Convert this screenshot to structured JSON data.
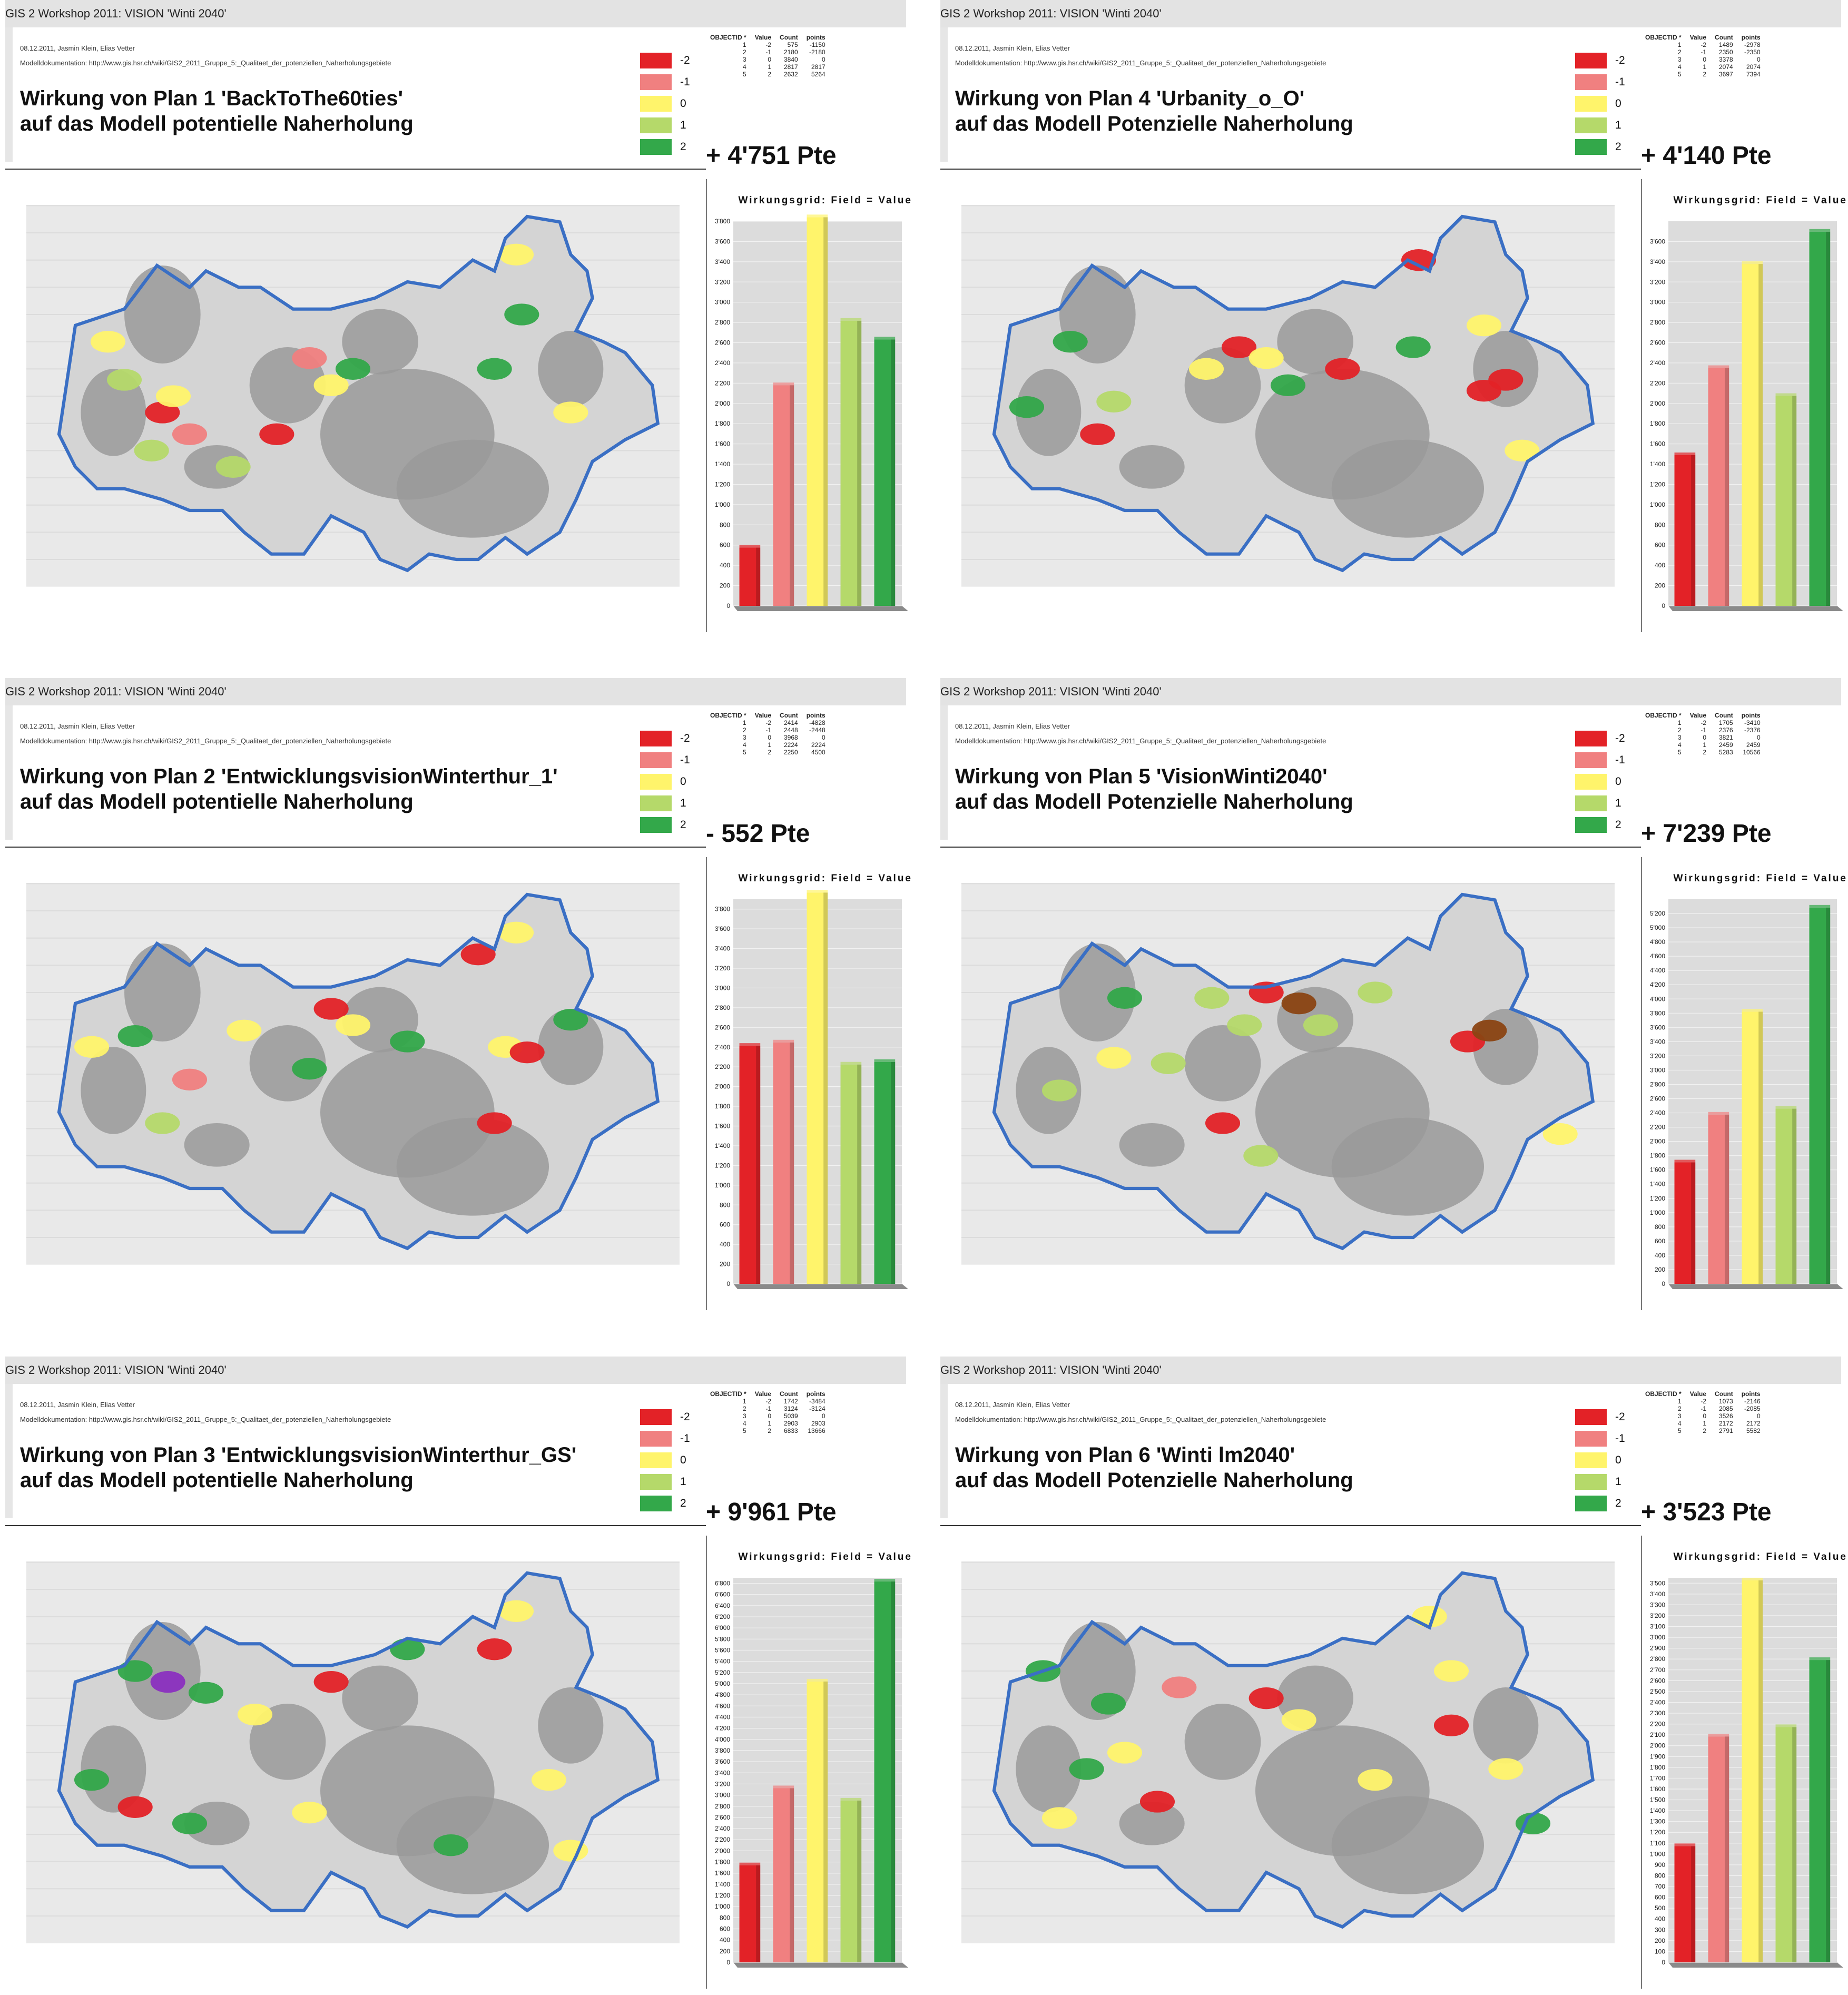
{
  "panels": [
    {
      "id": "p1",
      "header": "GIS 2 Workshop 2011: VISION 'Winti 2040'",
      "date_authors": "08.12.2011, Jasmin Klein, Elias Vetter",
      "doc": "Modelldokumentation: http://www.gis.hsr.ch/wiki/GIS2_2011_Gruppe_5:_Qualitaet_der_potenziellen_Naherholungsgebiete",
      "title_line1": "Wirkung von Plan 1 'BackToThe60ties'",
      "title_line2": "auf das Modell potentielle Naherholung",
      "points": "+ 4'751 Pte",
      "table": {
        "headers": [
          "OBJECTID *",
          "Value",
          "Count",
          "points"
        ],
        "rows": [
          [
            "1",
            "-2",
            "575",
            "-1150"
          ],
          [
            "2",
            "-1",
            "2180",
            "-2180"
          ],
          [
            "3",
            "0",
            "3840",
            "0"
          ],
          [
            "4",
            "1",
            "2817",
            "2817"
          ],
          [
            "5",
            "2",
            "2632",
            "5264"
          ]
        ]
      },
      "chart_data": {
        "type": "bar",
        "title": "Wirkungsgrid: Field = Value",
        "categories": [
          "-2",
          "-1",
          "0",
          "1",
          "2"
        ],
        "values": [
          575,
          2180,
          3840,
          2817,
          2632
        ],
        "ylim": [
          0,
          3800
        ],
        "yticks": [
          "0",
          "200",
          "400",
          "600",
          "800",
          "1'000",
          "1'200",
          "1'400",
          "1'600",
          "1'800",
          "2'000",
          "2'200",
          "2'400",
          "2'600",
          "2'800",
          "3'000",
          "3'200",
          "3'400",
          "3'600",
          "3'800"
        ]
      }
    },
    {
      "id": "p4",
      "header": "GIS 2 Workshop 2011: VISION 'Winti 2040'",
      "date_authors": "08.12.2011, Jasmin Klein, Elias Vetter",
      "doc": "Modelldokumentation: http://www.gis.hsr.ch/wiki/GIS2_2011_Gruppe_5:_Qualitaet_der_potenziellen_Naherholungsgebiete",
      "title_line1": "Wirkung von Plan 4 'Urbanity_o_O'",
      "title_line2": "auf das Modell Potenzielle Naherholung",
      "points": "+ 4'140 Pte",
      "table": {
        "headers": [
          "OBJECTID *",
          "Value",
          "Count",
          "points"
        ],
        "rows": [
          [
            "1",
            "-2",
            "1489",
            "-2978"
          ],
          [
            "2",
            "-1",
            "2350",
            "-2350"
          ],
          [
            "3",
            "0",
            "3378",
            "0"
          ],
          [
            "4",
            "1",
            "2074",
            "2074"
          ],
          [
            "5",
            "2",
            "3697",
            "7394"
          ]
        ]
      },
      "chart_data": {
        "type": "bar",
        "title": "Wirkungsgrid: Field = Value",
        "categories": [
          "-2",
          "-1",
          "0",
          "1",
          "2"
        ],
        "values": [
          1489,
          2350,
          3378,
          2074,
          3697
        ],
        "ylim": [
          0,
          3800
        ],
        "yticks": [
          "0",
          "200",
          "400",
          "600",
          "800",
          "1'000",
          "1'200",
          "1'400",
          "1'600",
          "1'800",
          "2'000",
          "2'200",
          "2'400",
          "2'600",
          "2'800",
          "3'000",
          "3'200",
          "3'400",
          "3'600"
        ]
      }
    },
    {
      "id": "p2",
      "header": "GIS 2 Workshop 2011: VISION 'Winti 2040'",
      "date_authors": "08.12.2011, Jasmin Klein, Elias Vetter",
      "doc": "Modelldokumentation: http://www.gis.hsr.ch/wiki/GIS2_2011_Gruppe_5:_Qualitaet_der_potenziellen_Naherholungsgebiete",
      "title_line1": "Wirkung von Plan 2 'EntwicklungsvisionWinterthur_1'",
      "title_line2": "auf das Modell potentielle Naherholung",
      "points": "- 552 Pte",
      "table": {
        "headers": [
          "OBJECTID *",
          "Value",
          "Count",
          "points"
        ],
        "rows": [
          [
            "1",
            "-2",
            "2414",
            "-4828"
          ],
          [
            "2",
            "-1",
            "2448",
            "-2448"
          ],
          [
            "3",
            "0",
            "3968",
            "0"
          ],
          [
            "4",
            "1",
            "2224",
            "2224"
          ],
          [
            "5",
            "2",
            "2250",
            "4500"
          ]
        ]
      },
      "chart_data": {
        "type": "bar",
        "title": "Wirkungsgrid: Field = Value",
        "categories": [
          "-2",
          "-1",
          "0",
          "1",
          "2"
        ],
        "values": [
          2414,
          2448,
          3968,
          2224,
          2250
        ],
        "ylim": [
          0,
          3900
        ],
        "yticks": [
          "0",
          "200",
          "400",
          "600",
          "800",
          "1'000",
          "1'200",
          "1'400",
          "1'600",
          "1'800",
          "2'000",
          "2'200",
          "2'400",
          "2'600",
          "2'800",
          "3'000",
          "3'200",
          "3'400",
          "3'600",
          "3'800"
        ]
      }
    },
    {
      "id": "p5",
      "header": "GIS 2 Workshop 2011: VISION 'Winti 2040'",
      "date_authors": "08.12.2011, Jasmin Klein, Elias Vetter",
      "doc": "Modelldokumentation: http://www.gis.hsr.ch/wiki/GIS2_2011_Gruppe_5:_Qualitaet_der_potenziellen_Naherholungsgebiete",
      "title_line1": "Wirkung von Plan 5 'VisionWinti2040'",
      "title_line2": "auf das Modell Potenzielle Naherholung",
      "points": "+ 7'239 Pte",
      "table": {
        "headers": [
          "OBJECTID *",
          "Value",
          "Count",
          "points"
        ],
        "rows": [
          [
            "1",
            "-2",
            "1705",
            "-3410"
          ],
          [
            "2",
            "-1",
            "2376",
            "-2376"
          ],
          [
            "3",
            "0",
            "3821",
            "0"
          ],
          [
            "4",
            "1",
            "2459",
            "2459"
          ],
          [
            "5",
            "2",
            "5283",
            "10566"
          ]
        ]
      },
      "chart_data": {
        "type": "bar",
        "title": "Wirkungsgrid: Field = Value",
        "categories": [
          "-2",
          "-1",
          "0",
          "1",
          "2"
        ],
        "values": [
          1705,
          2376,
          3821,
          2459,
          5283
        ],
        "ylim": [
          0,
          5400
        ],
        "yticks": [
          "0",
          "200",
          "400",
          "600",
          "800",
          "1'000",
          "1'200",
          "1'400",
          "1'600",
          "1'800",
          "2'000",
          "2'200",
          "2'400",
          "2'600",
          "2'800",
          "3'000",
          "3'200",
          "3'400",
          "3'600",
          "3'800",
          "4'000",
          "4'200",
          "4'400",
          "4'600",
          "4'800",
          "5'000",
          "5'200"
        ]
      }
    },
    {
      "id": "p3",
      "header": "GIS 2 Workshop 2011: VISION 'Winti 2040'",
      "date_authors": "08.12.2011, Jasmin Klein, Elias Vetter",
      "doc": "Modelldokumentation: http://www.gis.hsr.ch/wiki/GIS2_2011_Gruppe_5:_Qualitaet_der_potenziellen_Naherholungsgebiete",
      "title_line1": "Wirkung von Plan 3 'EntwicklungsvisionWinterthur_GS'",
      "title_line2": "auf das Modell potentielle Naherholung",
      "points": "+ 9'961 Pte",
      "table": {
        "headers": [
          "OBJECTID *",
          "Value",
          "Count",
          "points"
        ],
        "rows": [
          [
            "1",
            "-2",
            "1742",
            "-3484"
          ],
          [
            "2",
            "-1",
            "3124",
            "-3124"
          ],
          [
            "3",
            "0",
            "5039",
            "0"
          ],
          [
            "4",
            "1",
            "2903",
            "2903"
          ],
          [
            "5",
            "2",
            "6833",
            "13666"
          ]
        ]
      },
      "chart_data": {
        "type": "bar",
        "title": "Wirkungsgrid: Field = Value",
        "categories": [
          "-2",
          "-1",
          "0",
          "1",
          "2"
        ],
        "values": [
          1742,
          3124,
          5039,
          2903,
          6833
        ],
        "ylim": [
          0,
          6900
        ],
        "yticks": [
          "0",
          "200",
          "400",
          "600",
          "800",
          "1'000",
          "1'200",
          "1'400",
          "1'600",
          "1'800",
          "2'000",
          "2'200",
          "2'400",
          "2'600",
          "2'800",
          "3'000",
          "3'200",
          "3'400",
          "3'600",
          "3'800",
          "4'000",
          "4'200",
          "4'400",
          "4'600",
          "4'800",
          "5'000",
          "5'200",
          "5'400",
          "5'600",
          "5'800",
          "6'000",
          "6'200",
          "6'400",
          "6'600",
          "6'800"
        ]
      }
    },
    {
      "id": "p6",
      "header": "GIS 2 Workshop 2011: VISION 'Winti 2040'",
      "date_authors": "08.12.2011, Jasmin Klein, Elias Vetter",
      "doc": "Modelldokumentation: http://www.gis.hsr.ch/wiki/GIS2_2011_Gruppe_5:_Qualitaet_der_potenziellen_Naherholungsgebiete",
      "title_line1": "Wirkung von Plan 6 'Winti lm2040'",
      "title_line2": "auf das Modell Potenzielle Naherholung",
      "points": "+ 3'523 Pte",
      "table": {
        "headers": [
          "OBJECTID *",
          "Value",
          "Count",
          "points"
        ],
        "rows": [
          [
            "1",
            "-2",
            "1073",
            "-2146"
          ],
          [
            "2",
            "-1",
            "2085",
            "-2085"
          ],
          [
            "3",
            "0",
            "3526",
            "0"
          ],
          [
            "4",
            "1",
            "2172",
            "2172"
          ],
          [
            "5",
            "2",
            "2791",
            "5582"
          ]
        ]
      },
      "chart_data": {
        "type": "bar",
        "title": "Wirkungsgrid: Field = Value",
        "categories": [
          "-2",
          "-1",
          "0",
          "1",
          "2"
        ],
        "values": [
          1073,
          2085,
          3526,
          2172,
          2791
        ],
        "ylim": [
          0,
          3550
        ],
        "yticks": [
          "0",
          "100",
          "200",
          "300",
          "400",
          "500",
          "600",
          "700",
          "800",
          "900",
          "1'000",
          "1'100",
          "1'200",
          "1'300",
          "1'400",
          "1'500",
          "1'600",
          "1'700",
          "1'800",
          "1'900",
          "2'000",
          "2'100",
          "2'200",
          "2'300",
          "2'400",
          "2'500",
          "2'600",
          "2'700",
          "2'800",
          "2'900",
          "3'000",
          "3'100",
          "3'200",
          "3'300",
          "3'400",
          "3'500"
        ]
      }
    }
  ],
  "legend": {
    "items": [
      {
        "label": "-2",
        "color": "#e32227"
      },
      {
        "label": "-1",
        "color": "#f08080"
      },
      {
        "label": "0",
        "color": "#fff46b"
      },
      {
        "label": "1",
        "color": "#b5d96a"
      },
      {
        "label": "2",
        "color": "#33a84a"
      }
    ]
  },
  "colors": {
    "boundary": "#3a6fc4",
    "grey_area": "#9a9a9a",
    "map_bg": "#e9e9e9",
    "chart_bg": "#dcdcdc"
  }
}
